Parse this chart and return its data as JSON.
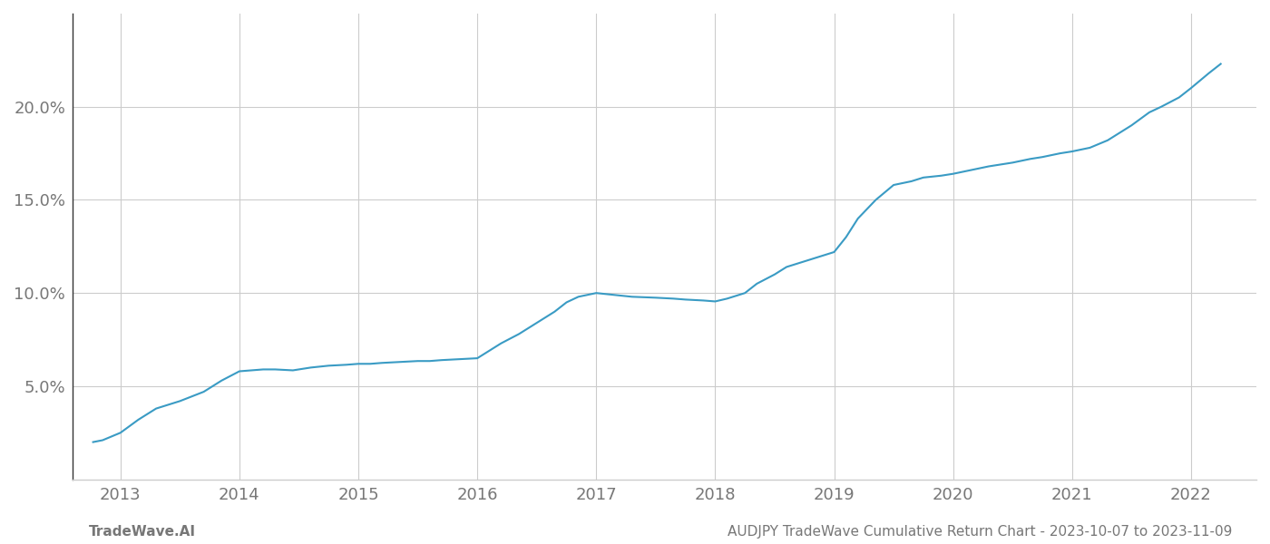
{
  "x_data": [
    2012.77,
    2012.85,
    2013.0,
    2013.15,
    2013.3,
    2013.5,
    2013.7,
    2013.85,
    2014.0,
    2014.1,
    2014.2,
    2014.3,
    2014.45,
    2014.6,
    2014.75,
    2014.9,
    2015.0,
    2015.1,
    2015.2,
    2015.35,
    2015.5,
    2015.6,
    2015.7,
    2015.85,
    2016.0,
    2016.1,
    2016.2,
    2016.35,
    2016.5,
    2016.65,
    2016.75,
    2016.85,
    2017.0,
    2017.15,
    2017.3,
    2017.5,
    2017.65,
    2017.75,
    2017.9,
    2018.0,
    2018.1,
    2018.25,
    2018.35,
    2018.5,
    2018.6,
    2018.7,
    2018.85,
    2019.0,
    2019.1,
    2019.2,
    2019.35,
    2019.5,
    2019.65,
    2019.75,
    2019.9,
    2020.0,
    2020.15,
    2020.3,
    2020.5,
    2020.65,
    2020.75,
    2020.9,
    2021.0,
    2021.15,
    2021.3,
    2021.5,
    2021.65,
    2021.75,
    2021.9,
    2022.0,
    2022.15,
    2022.25
  ],
  "y_data": [
    2.0,
    2.1,
    2.5,
    3.2,
    3.8,
    4.2,
    4.7,
    5.3,
    5.8,
    5.85,
    5.9,
    5.9,
    5.85,
    6.0,
    6.1,
    6.15,
    6.2,
    6.2,
    6.25,
    6.3,
    6.35,
    6.35,
    6.4,
    6.45,
    6.5,
    6.9,
    7.3,
    7.8,
    8.4,
    9.0,
    9.5,
    9.8,
    10.0,
    9.9,
    9.8,
    9.75,
    9.7,
    9.65,
    9.6,
    9.55,
    9.7,
    10.0,
    10.5,
    11.0,
    11.4,
    11.6,
    11.9,
    12.2,
    13.0,
    14.0,
    15.0,
    15.8,
    16.0,
    16.2,
    16.3,
    16.4,
    16.6,
    16.8,
    17.0,
    17.2,
    17.3,
    17.5,
    17.6,
    17.8,
    18.2,
    19.0,
    19.7,
    20.0,
    20.5,
    21.0,
    21.8,
    22.3
  ],
  "line_color": "#3a9bc4",
  "line_width": 1.5,
  "background_color": "#ffffff",
  "grid_color": "#cccccc",
  "tick_label_color": "#777777",
  "xlim": [
    2012.6,
    2022.55
  ],
  "ylim": [
    0,
    25
  ],
  "yticks": [
    5.0,
    10.0,
    15.0,
    20.0
  ],
  "ytick_labels": [
    "5.0%",
    "10.0%",
    "15.0%",
    "20.0%"
  ],
  "xtick_years": [
    2013,
    2014,
    2015,
    2016,
    2017,
    2018,
    2019,
    2020,
    2021,
    2022
  ],
  "footer_left": "TradeWave.AI",
  "footer_right": "AUDJPY TradeWave Cumulative Return Chart - 2023-10-07 to 2023-11-09",
  "footer_color": "#777777",
  "footer_fontsize": 11,
  "tick_fontsize": 13,
  "left_spine_color": "#333333"
}
